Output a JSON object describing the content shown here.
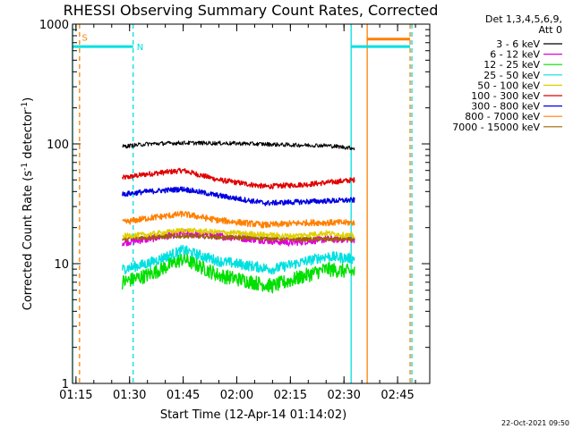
{
  "chart_data": {
    "type": "line",
    "title": "RHESSI Observing Summary Count Rates, Corrected",
    "xlabel": "Start Time (12-Apr-14 01:14:02)",
    "ylabel_main": "Corrected Count Rate (s",
    "ylabel_sup": "-1",
    "ylabel_tail": " detector",
    "ylabel_end": ")",
    "y_scale": "log",
    "ylim": [
      1,
      1000
    ],
    "y_ticks": [
      {
        "value": 1,
        "label": "1"
      },
      {
        "value": 10,
        "label": "10"
      },
      {
        "value": 100,
        "label": "100"
      },
      {
        "value": 1000,
        "label": "1000"
      }
    ],
    "xlim": [
      "01:14:02",
      "02:54:00"
    ],
    "x_ticks": [
      "01:15",
      "01:30",
      "01:45",
      "02:00",
      "02:15",
      "02:30",
      "02:45"
    ],
    "legend_placement": "right",
    "legend_header": [
      "Det 1,3,4,5,6,9,",
      "Att 0"
    ],
    "series": [
      {
        "name": "3 - 6 keV",
        "color": "#000000",
        "start": "01:28",
        "end": "02:33",
        "profile": [
          [
            "01:28",
            95
          ],
          [
            "01:35",
            100
          ],
          [
            "01:45",
            102
          ],
          [
            "02:00",
            101
          ],
          [
            "02:15",
            98
          ],
          [
            "02:25",
            97
          ],
          [
            "02:33",
            92
          ]
        ]
      },
      {
        "name": "6 - 12 keV",
        "color": "#e000e0",
        "start": "01:28",
        "end": "02:33",
        "profile": [
          [
            "01:28",
            15
          ],
          [
            "01:35",
            16
          ],
          [
            "01:45",
            18
          ],
          [
            "02:00",
            16.5
          ],
          [
            "02:15",
            15
          ],
          [
            "02:25",
            16
          ],
          [
            "02:33",
            16
          ]
        ]
      },
      {
        "name": "12 - 25 keV",
        "color": "#00e000",
        "start": "01:28",
        "end": "02:33",
        "profile": [
          [
            "01:28",
            7
          ],
          [
            "01:35",
            8
          ],
          [
            "01:45",
            11
          ],
          [
            "01:55",
            8
          ],
          [
            "02:10",
            6.5
          ],
          [
            "02:25",
            9
          ],
          [
            "02:33",
            8.5
          ]
        ]
      },
      {
        "name": "25 - 50 keV",
        "color": "#00e0e0",
        "start": "01:28",
        "end": "02:33",
        "profile": [
          [
            "01:28",
            9
          ],
          [
            "01:35",
            10
          ],
          [
            "01:45",
            13
          ],
          [
            "01:55",
            10.5
          ],
          [
            "02:10",
            9
          ],
          [
            "02:25",
            11.5
          ],
          [
            "02:33",
            11
          ]
        ]
      },
      {
        "name": "50 - 100 keV",
        "color": "#e0d000",
        "start": "01:28",
        "end": "02:33",
        "profile": [
          [
            "01:28",
            17
          ],
          [
            "01:35",
            17.5
          ],
          [
            "01:45",
            19
          ],
          [
            "02:00",
            18
          ],
          [
            "02:15",
            17
          ],
          [
            "02:25",
            18
          ],
          [
            "02:33",
            17
          ]
        ]
      },
      {
        "name": "100 - 300 keV",
        "color": "#e00000",
        "start": "01:28",
        "end": "02:33",
        "profile": [
          [
            "01:28",
            52
          ],
          [
            "01:35",
            56
          ],
          [
            "01:45",
            60
          ],
          [
            "01:55",
            50
          ],
          [
            "02:08",
            44
          ],
          [
            "02:20",
            46
          ],
          [
            "02:33",
            50
          ]
        ]
      },
      {
        "name": "300 - 800 keV",
        "color": "#0000e0",
        "start": "01:28",
        "end": "02:33",
        "profile": [
          [
            "01:28",
            38
          ],
          [
            "01:35",
            40
          ],
          [
            "01:45",
            42
          ],
          [
            "01:55",
            37
          ],
          [
            "02:08",
            32
          ],
          [
            "02:20",
            33
          ],
          [
            "02:33",
            34
          ]
        ]
      },
      {
        "name": "800 - 7000 keV",
        "color": "#ff8000",
        "start": "01:28",
        "end": "02:33",
        "profile": [
          [
            "01:28",
            22
          ],
          [
            "01:35",
            24
          ],
          [
            "01:45",
            26
          ],
          [
            "01:55",
            23
          ],
          [
            "02:08",
            21
          ],
          [
            "02:20",
            22
          ],
          [
            "02:33",
            22
          ]
        ]
      },
      {
        "name": "7000 - 15000 keV",
        "color": "#a06000",
        "start": "01:28",
        "end": "02:33",
        "profile": [
          [
            "01:28",
            16
          ],
          [
            "01:33",
            16.5
          ],
          [
            "01:45",
            17
          ],
          [
            "02:00",
            16.5
          ],
          [
            "02:15",
            16
          ],
          [
            "02:25",
            16
          ],
          [
            "02:33",
            16
          ]
        ]
      }
    ],
    "annotations": [
      {
        "label": "S",
        "color": "#ff8000"
      },
      {
        "label": "N",
        "color": "#00e0e0"
      }
    ],
    "flag_bars": [
      {
        "color": "#00e0e0",
        "from": "01:14:02",
        "to": "01:31:00",
        "value": 650
      },
      {
        "color": "#00e0e0",
        "from": "02:32:00",
        "to": "02:48:30",
        "value": 650
      },
      {
        "color": "#ff8000",
        "from": "02:36:30",
        "to": "02:48:30",
        "value": 750
      }
    ],
    "vlines": [
      {
        "time": "01:14:02",
        "color": "#00e0e0",
        "style": "solid"
      },
      {
        "time": "01:16:00",
        "color": "#ff8000",
        "style": "dashed"
      },
      {
        "time": "01:31:00",
        "color": "#00e0e0",
        "style": "dashed"
      },
      {
        "time": "02:32:00",
        "color": "#00e0e0",
        "style": "solid"
      },
      {
        "time": "02:36:30",
        "color": "#ff8000",
        "style": "solid"
      },
      {
        "time": "02:48:30",
        "color": "#ff8000",
        "style": "dashed"
      },
      {
        "time": "02:49:00",
        "color": "#00e0e0",
        "style": "dashed"
      }
    ],
    "grid": false
  },
  "footer": {
    "date_stamp": "22-Oct-2021 09:50"
  }
}
